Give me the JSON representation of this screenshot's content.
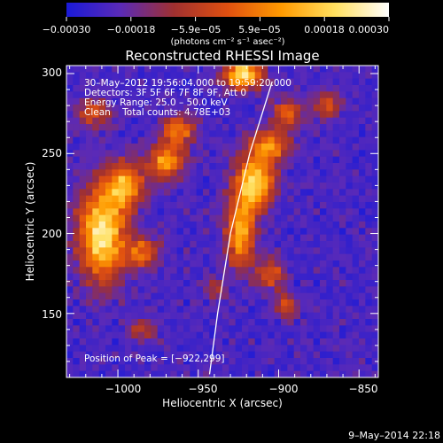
{
  "chart_data": {
    "type": "heatmap",
    "title": "Reconstructed RHESSI Image",
    "xlabel": "Heliocentric X (arcsec)",
    "ylabel": "Heliocentric Y (arcsec)",
    "xlim": [
      -1032,
      -838
    ],
    "ylim": [
      110,
      305
    ],
    "x_ticks": [
      -1000,
      -950,
      -900,
      -850
    ],
    "x_tick_labels": [
      "−1000",
      "−950",
      "−900",
      "−850"
    ],
    "y_ticks": [
      150,
      200,
      250,
      300
    ],
    "y_tick_labels": [
      "150",
      "200",
      "250",
      "300"
    ],
    "colorbar": {
      "range": [
        -0.0003,
        0.0003
      ],
      "tick_labels": [
        "−0.00030",
        "−0.00018",
        "−5.9e−05",
        "5.9e−05",
        "0.00018",
        "0.00030"
      ],
      "unit_label": "(photons cm⁻² s⁻¹ asec⁻²)",
      "colors": [
        "#1a1ad8",
        "#5a2ab8",
        "#a03030",
        "#e05010",
        "#ff9a00",
        "#ffe060",
        "#ffffff"
      ]
    },
    "annotations": {
      "time": "30–May–2012 19:56:04.000 to 19:59:20.000",
      "detectors": "Detectors: 3F 5F 6F 7F 8F 9F, Att 0",
      "energy": "Energy Range: 25.0 – 50.0 keV",
      "clean": "Clean    Total counts: 4.78E+03",
      "peak": "Position of Peak = [−922,299]"
    },
    "peak_position": [
      -922,
      299
    ],
    "limb_curve": [
      [
        -943,
        112
      ],
      [
        -938,
        150
      ],
      [
        -930,
        200
      ],
      [
        -918,
        250
      ],
      [
        -904,
        295
      ]
    ],
    "emission_regions": [
      {
        "x": -1010,
        "y": 200,
        "amp": 1.0,
        "sx": 10,
        "sy": 20
      },
      {
        "x": -995,
        "y": 230,
        "amp": 0.75,
        "sx": 8,
        "sy": 10
      },
      {
        "x": -985,
        "y": 188,
        "amp": 0.55,
        "sx": 7,
        "sy": 7
      },
      {
        "x": -970,
        "y": 245,
        "amp": 0.7,
        "sx": 8,
        "sy": 8
      },
      {
        "x": -962,
        "y": 265,
        "amp": 0.65,
        "sx": 7,
        "sy": 6
      },
      {
        "x": -1015,
        "y": 275,
        "amp": 0.45,
        "sx": 8,
        "sy": 6
      },
      {
        "x": -915,
        "y": 232,
        "amp": 0.95,
        "sx": 8,
        "sy": 12
      },
      {
        "x": -924,
        "y": 200,
        "amp": 0.8,
        "sx": 6,
        "sy": 15
      },
      {
        "x": -905,
        "y": 255,
        "amp": 0.65,
        "sx": 8,
        "sy": 7
      },
      {
        "x": -895,
        "y": 275,
        "amp": 0.55,
        "sx": 6,
        "sy": 6
      },
      {
        "x": -922,
        "y": 299,
        "amp": 1.0,
        "sx": 8,
        "sy": 6
      },
      {
        "x": -870,
        "y": 280,
        "amp": 0.45,
        "sx": 6,
        "sy": 6
      },
      {
        "x": -905,
        "y": 175,
        "amp": 0.5,
        "sx": 6,
        "sy": 7
      },
      {
        "x": -895,
        "y": 155,
        "amp": 0.45,
        "sx": 5,
        "sy": 5
      },
      {
        "x": -985,
        "y": 140,
        "amp": 0.35,
        "sx": 6,
        "sy": 5
      },
      {
        "x": -940,
        "y": 165,
        "amp": 0.3,
        "sx": 5,
        "sy": 5
      }
    ]
  },
  "footer": {
    "timestamp": "9–May–2014 22:18"
  }
}
